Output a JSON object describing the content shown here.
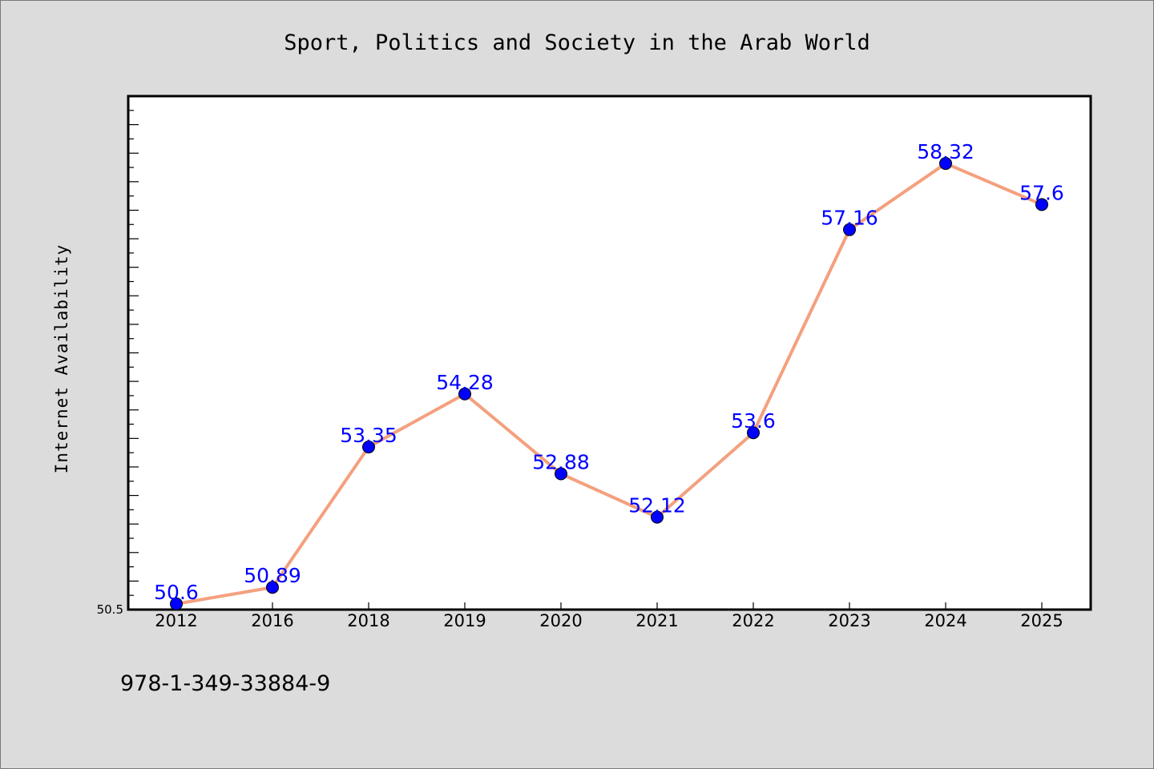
{
  "chart_data": {
    "type": "line",
    "title": "Sport, Politics and Society in the Arab World",
    "xlabel": "",
    "ylabel": "Internet Availability",
    "categories": [
      "2012",
      "2016",
      "2018",
      "2019",
      "2020",
      "2021",
      "2022",
      "2023",
      "2024",
      "2025"
    ],
    "series": [
      {
        "values": [
          50.6,
          50.89,
          53.35,
          54.28,
          52.88,
          52.12,
          53.6,
          57.16,
          58.32,
          57.6
        ]
      }
    ],
    "data_labels": [
      "50.6",
      "50.89",
      "53.35",
      "54.28",
      "52.88",
      "52.12",
      "53.6",
      "57.16",
      "58.32",
      "57.6"
    ],
    "ylim": [
      50.5,
      59.5
    ],
    "yticks_labeled": [
      "50.5"
    ],
    "grid": false,
    "line_color": "#f4a07e",
    "marker_color": "#0000ff",
    "label_color": "#0000ff"
  },
  "footer": {
    "isbn": "978-1-349-33884-9"
  }
}
